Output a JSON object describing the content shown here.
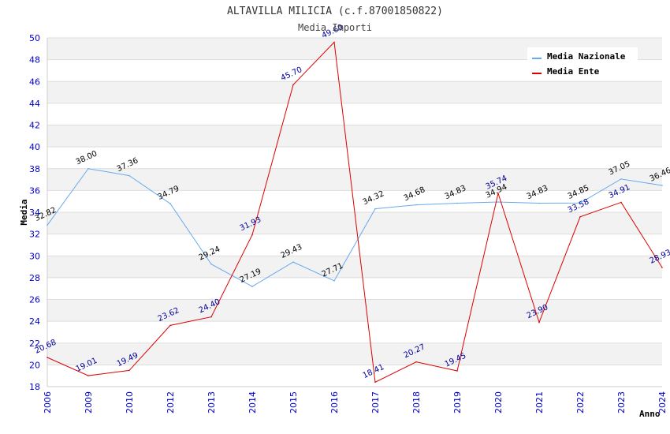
{
  "chart_data": {
    "type": "line",
    "title": "ALTAVILLA MILICIA (c.f.87001850822)",
    "subtitle": "Media Importi",
    "xlabel": "Anno",
    "ylabel": "Media",
    "ylim": [
      18,
      50
    ],
    "yticks": [
      18,
      20,
      22,
      24,
      26,
      28,
      30,
      32,
      34,
      36,
      38,
      40,
      42,
      44,
      46,
      48,
      50
    ],
    "categories": [
      "2006",
      "2009",
      "2010",
      "2012",
      "2013",
      "2014",
      "2015",
      "2016",
      "2017",
      "2018",
      "2019",
      "2020",
      "2021",
      "2022",
      "2023",
      "2024"
    ],
    "grid": true,
    "legend_position": "top-right",
    "series": [
      {
        "name": "Media Nazionale",
        "color": "#66aaee",
        "label_color": "#000000",
        "values": [
          32.82,
          38.0,
          37.36,
          34.79,
          29.24,
          27.19,
          29.43,
          27.71,
          34.32,
          34.68,
          34.83,
          34.94,
          34.83,
          34.85,
          37.05,
          36.46
        ],
        "labels": [
          "32.82",
          "38.00",
          "37.36",
          "34.79",
          "29.24",
          "27.19",
          "29.43",
          "27.71",
          "34.32",
          "34.68",
          "34.83",
          "34.94",
          "34.83",
          "34.85",
          "37.05",
          "36.46"
        ]
      },
      {
        "name": "Media Ente",
        "color": "#dd0000",
        "label_color": "#000099",
        "values": [
          20.68,
          19.01,
          19.49,
          23.62,
          24.4,
          31.93,
          45.7,
          49.6,
          18.41,
          20.27,
          19.45,
          35.74,
          23.9,
          33.58,
          34.91,
          28.93
        ],
        "labels": [
          "20.68",
          "19.01",
          "19.49",
          "23.62",
          "24.40",
          "31.93",
          "45.70",
          "49.60",
          "18.41",
          "20.27",
          "19.45",
          "35.74",
          "23.90",
          "33.58",
          "34.91",
          "28.93"
        ]
      }
    ]
  }
}
